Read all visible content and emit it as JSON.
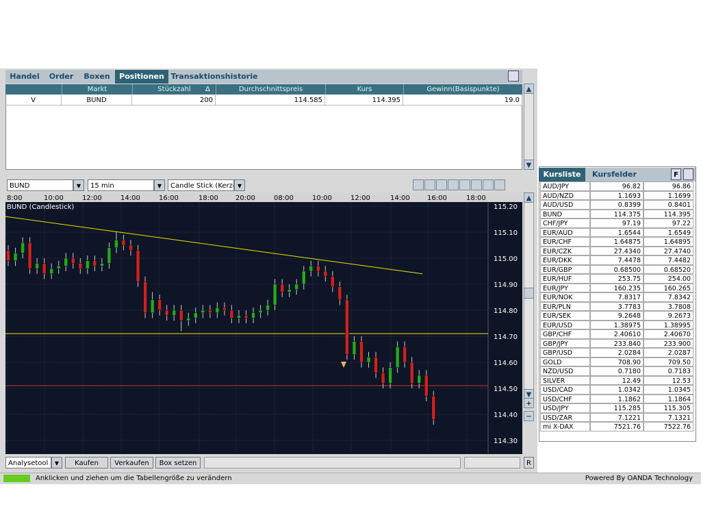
{
  "tabs": [
    "Handel",
    "Order",
    "Boxen",
    "Positionen",
    "Transaktionshistorie"
  ],
  "positions": {
    "headers": [
      "Markt",
      "Stückzahl",
      "Durchschnittspreis",
      "Kurs",
      "Gewinn(Basispunkte)"
    ],
    "sort_indicator": "Δ",
    "rows": [
      [
        "V",
        "BUND",
        "200",
        "114.585",
        "114.395",
        "19.0"
      ]
    ]
  },
  "chart": {
    "symbol": "BUND",
    "interval": "15 min",
    "style": "Candle Stick (Kerze",
    "label": "BUND (Candlestick)",
    "chart_data": {
      "type": "candlestick",
      "up_color": "#22aa22",
      "down_color": "#cc2222",
      "time_labels": [
        "8:00",
        "10:00",
        "12:00",
        "14:00",
        "16:00",
        "18:00",
        "20:00",
        "08:00",
        "10:00",
        "12:00",
        "14:00",
        "16:00",
        "18:00"
      ],
      "ylim": [
        114.25,
        115.213
      ],
      "yticks": [
        {
          "value": 115.2,
          "label": "115.20"
        },
        {
          "value": 115.1,
          "label": "115.10"
        },
        {
          "value": 115.0,
          "label": "115.00"
        },
        {
          "value": 114.9,
          "label": "114.90"
        },
        {
          "value": 114.8,
          "label": "114.80"
        },
        {
          "value": 114.7,
          "label": "114.70"
        },
        {
          "value": 114.6,
          "label": "114.60"
        },
        {
          "value": 114.5,
          "label": "114.50"
        },
        {
          "value": 114.4,
          "label": "114.40"
        },
        {
          "value": 114.3,
          "label": "114.30"
        }
      ],
      "trendline": {
        "from": 115.16,
        "to": 114.94,
        "color": "#e6e600"
      },
      "hlines": [
        {
          "value": 114.71,
          "color": "#e6e600"
        },
        {
          "value": 114.51,
          "color": "#cc3333"
        }
      ],
      "candles": [
        [
          115.03,
          115.05,
          114.97,
          114.99
        ],
        [
          114.99,
          115.04,
          114.97,
          115.02
        ],
        [
          115.02,
          115.08,
          115.0,
          115.06
        ],
        [
          115.06,
          115.08,
          114.94,
          114.96
        ],
        [
          114.96,
          115.0,
          114.94,
          114.98
        ],
        [
          114.98,
          115.0,
          114.92,
          114.94
        ],
        [
          114.94,
          114.98,
          114.92,
          114.96
        ],
        [
          114.96,
          114.99,
          114.94,
          114.97
        ],
        [
          114.97,
          115.02,
          114.95,
          115.0
        ],
        [
          115.0,
          115.02,
          114.96,
          114.98
        ],
        [
          114.98,
          115.0,
          114.94,
          114.96
        ],
        [
          114.96,
          115.01,
          114.94,
          114.99
        ],
        [
          114.99,
          115.01,
          114.95,
          114.97
        ],
        [
          114.97,
          115.0,
          114.95,
          114.98
        ],
        [
          114.98,
          115.06,
          114.96,
          115.04
        ],
        [
          115.04,
          115.1,
          115.02,
          115.07
        ],
        [
          115.07,
          115.09,
          115.03,
          115.05
        ],
        [
          115.05,
          115.07,
          115.01,
          115.03
        ],
        [
          115.03,
          115.05,
          114.89,
          114.91
        ],
        [
          114.91,
          114.93,
          114.77,
          114.79
        ],
        [
          114.79,
          114.87,
          114.77,
          114.84
        ],
        [
          114.84,
          114.86,
          114.78,
          114.8
        ],
        [
          114.8,
          114.82,
          114.76,
          114.78
        ],
        [
          114.78,
          114.82,
          114.76,
          114.8
        ],
        [
          114.8,
          114.82,
          114.72,
          114.76
        ],
        [
          114.76,
          114.79,
          114.74,
          114.77
        ],
        [
          114.77,
          114.81,
          114.75,
          114.79
        ],
        [
          114.79,
          114.82,
          114.77,
          114.8
        ],
        [
          114.8,
          114.82,
          114.77,
          114.79
        ],
        [
          114.79,
          114.83,
          114.77,
          114.81
        ],
        [
          114.81,
          114.83,
          114.78,
          114.8
        ],
        [
          114.8,
          114.82,
          114.75,
          114.77
        ],
        [
          114.77,
          114.8,
          114.75,
          114.78
        ],
        [
          114.78,
          114.8,
          114.75,
          114.77
        ],
        [
          114.77,
          114.81,
          114.75,
          114.79
        ],
        [
          114.79,
          114.82,
          114.77,
          114.8
        ],
        [
          114.8,
          114.84,
          114.78,
          114.82
        ],
        [
          114.82,
          114.92,
          114.8,
          114.9
        ],
        [
          114.9,
          114.92,
          114.85,
          114.87
        ],
        [
          114.87,
          114.9,
          114.85,
          114.88
        ],
        [
          114.88,
          114.92,
          114.86,
          114.9
        ],
        [
          114.9,
          114.97,
          114.88,
          114.95
        ],
        [
          114.95,
          114.99,
          114.93,
          114.97
        ],
        [
          114.97,
          114.99,
          114.93,
          114.95
        ],
        [
          114.95,
          114.97,
          114.91,
          114.93
        ],
        [
          114.93,
          114.95,
          114.87,
          114.89
        ],
        [
          114.89,
          114.91,
          114.82,
          114.84
        ],
        [
          114.84,
          114.86,
          114.61,
          114.63
        ],
        [
          114.63,
          114.7,
          114.61,
          114.68
        ],
        [
          114.68,
          114.7,
          114.58,
          114.6
        ],
        [
          114.6,
          114.64,
          114.58,
          114.62
        ],
        [
          114.62,
          114.64,
          114.54,
          114.56
        ],
        [
          114.56,
          114.58,
          114.5,
          114.52
        ],
        [
          114.52,
          114.6,
          114.5,
          114.58
        ],
        [
          114.58,
          114.68,
          114.56,
          114.66
        ],
        [
          114.66,
          114.68,
          114.58,
          114.6
        ],
        [
          114.6,
          114.62,
          114.5,
          114.52
        ],
        [
          114.52,
          114.57,
          114.5,
          114.55
        ],
        [
          114.55,
          114.57,
          114.45,
          114.47
        ],
        [
          114.47,
          114.49,
          114.36,
          114.38
        ]
      ]
    }
  },
  "controls": {
    "analysis": "Analysetool",
    "buy": "Kaufen",
    "sell": "Verkaufen",
    "box": "Box setzen",
    "reset": "R"
  },
  "status": {
    "hint": "Anklicken und ziehen um die Tabellengröße zu verändern",
    "credit": "Powered By OANDA Technology"
  },
  "rates": {
    "tabs": [
      "Kursliste",
      "Kursfelder"
    ],
    "button": "F",
    "rows": [
      [
        "AUD/JPY",
        "96.82",
        "96.86"
      ],
      [
        "AUD/NZD",
        "1.1693",
        "1.1699"
      ],
      [
        "AUD/USD",
        "0.8399",
        "0.8401"
      ],
      [
        "BUND",
        "114.375",
        "114.395"
      ],
      [
        "CHF/JPY",
        "97.19",
        "97.22"
      ],
      [
        "EUR/AUD",
        "1.6544",
        "1.6549"
      ],
      [
        "EUR/CHF",
        "1.64875",
        "1.64895"
      ],
      [
        "EUR/CZK",
        "27.4340",
        "27.4740"
      ],
      [
        "EUR/DKK",
        "7.4478",
        "7.4482"
      ],
      [
        "EUR/GBP",
        "0.68500",
        "0.68520"
      ],
      [
        "EUR/HUF",
        "253.75",
        "254.00"
      ],
      [
        "EUR/JPY",
        "160.235",
        "160.265"
      ],
      [
        "EUR/NOK",
        "7.8317",
        "7.8342"
      ],
      [
        "EUR/PLN",
        "3.7783",
        "3.7808"
      ],
      [
        "EUR/SEK",
        "9.2648",
        "9.2673"
      ],
      [
        "EUR/USD",
        "1.38975",
        "1.38995"
      ],
      [
        "GBP/CHF",
        "2.40610",
        "2.40670"
      ],
      [
        "GBP/JPY",
        "233.840",
        "233.900"
      ],
      [
        "GBP/USD",
        "2.0284",
        "2.0287"
      ],
      [
        "GOLD",
        "708.90",
        "709.50"
      ],
      [
        "NZD/USD",
        "0.7180",
        "0.7183"
      ],
      [
        "SILVER",
        "12.49",
        "12.53"
      ],
      [
        "USD/CAD",
        "1.0342",
        "1.0345"
      ],
      [
        "USD/CHF",
        "1.1862",
        "1.1864"
      ],
      [
        "USD/JPY",
        "115.285",
        "115.305"
      ],
      [
        "USD/ZAR",
        "7.1221",
        "7.1321"
      ],
      [
        "mi X-DAX",
        "7521.76",
        "7522.76"
      ]
    ]
  }
}
